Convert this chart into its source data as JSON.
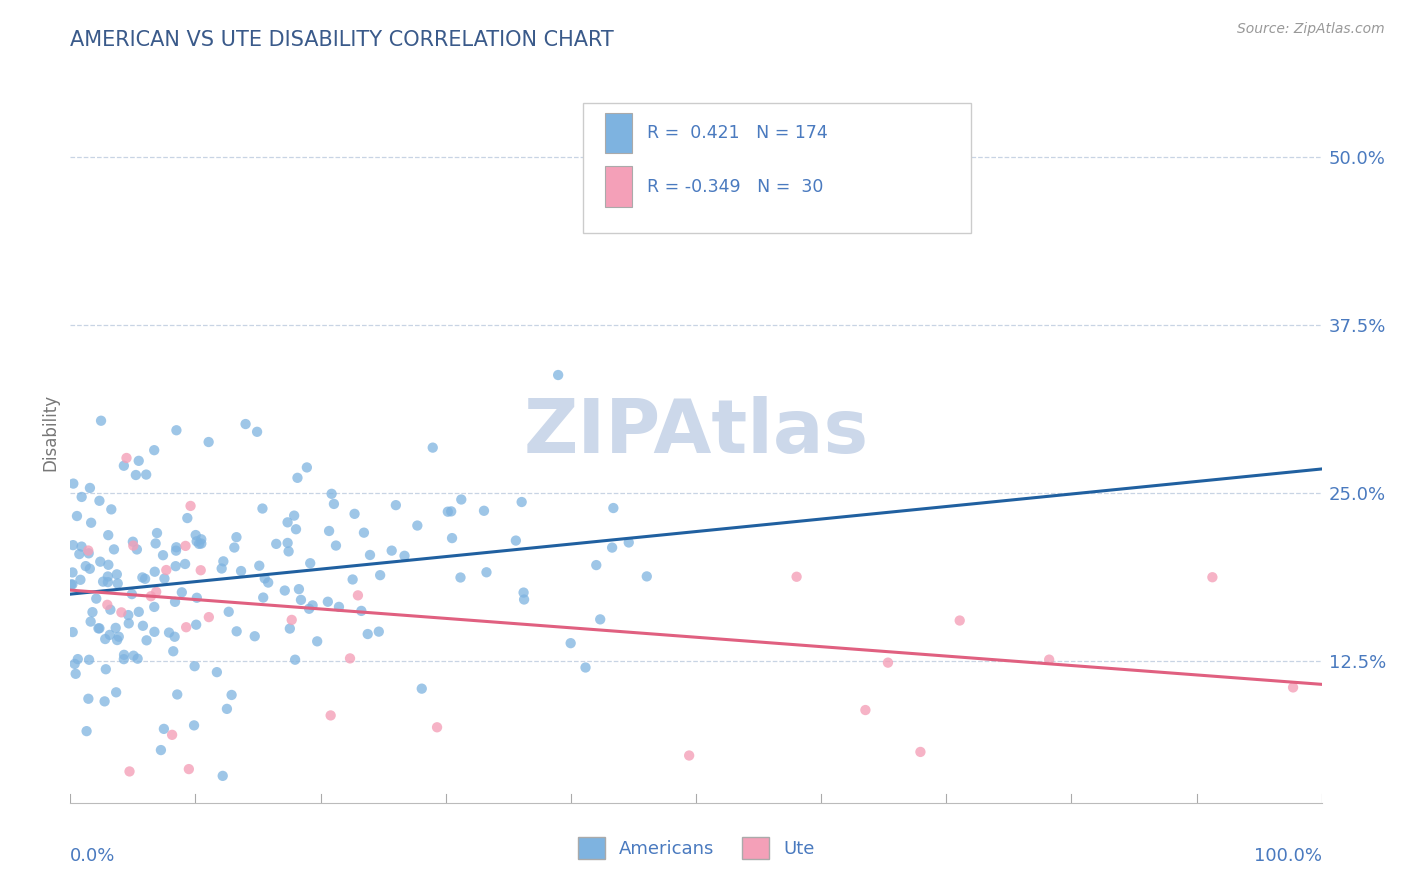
{
  "title": "AMERICAN VS UTE DISABILITY CORRELATION CHART",
  "source": "Source: ZipAtlas.com",
  "ylabel": "Disability",
  "ytick_labels": [
    "12.5%",
    "25.0%",
    "37.5%",
    "50.0%"
  ],
  "ytick_values": [
    0.125,
    0.25,
    0.375,
    0.5
  ],
  "xmin": 0.0,
  "xmax": 1.0,
  "ymin": 0.02,
  "ymax": 0.57,
  "american_R": 0.421,
  "american_N": 174,
  "ute_R": -0.349,
  "ute_N": 30,
  "american_color": "#7eb3e0",
  "american_line_color": "#2060a0",
  "ute_color": "#f4a0b8",
  "ute_line_color": "#e06080",
  "title_color": "#3a5a8a",
  "label_color": "#4a7abf",
  "watermark_color": "#ccd8ea",
  "background_color": "#ffffff",
  "grid_color": "#c8d4e4",
  "am_line_start_y": 0.175,
  "am_line_end_y": 0.268,
  "ute_line_start_y": 0.178,
  "ute_line_end_y": 0.108
}
